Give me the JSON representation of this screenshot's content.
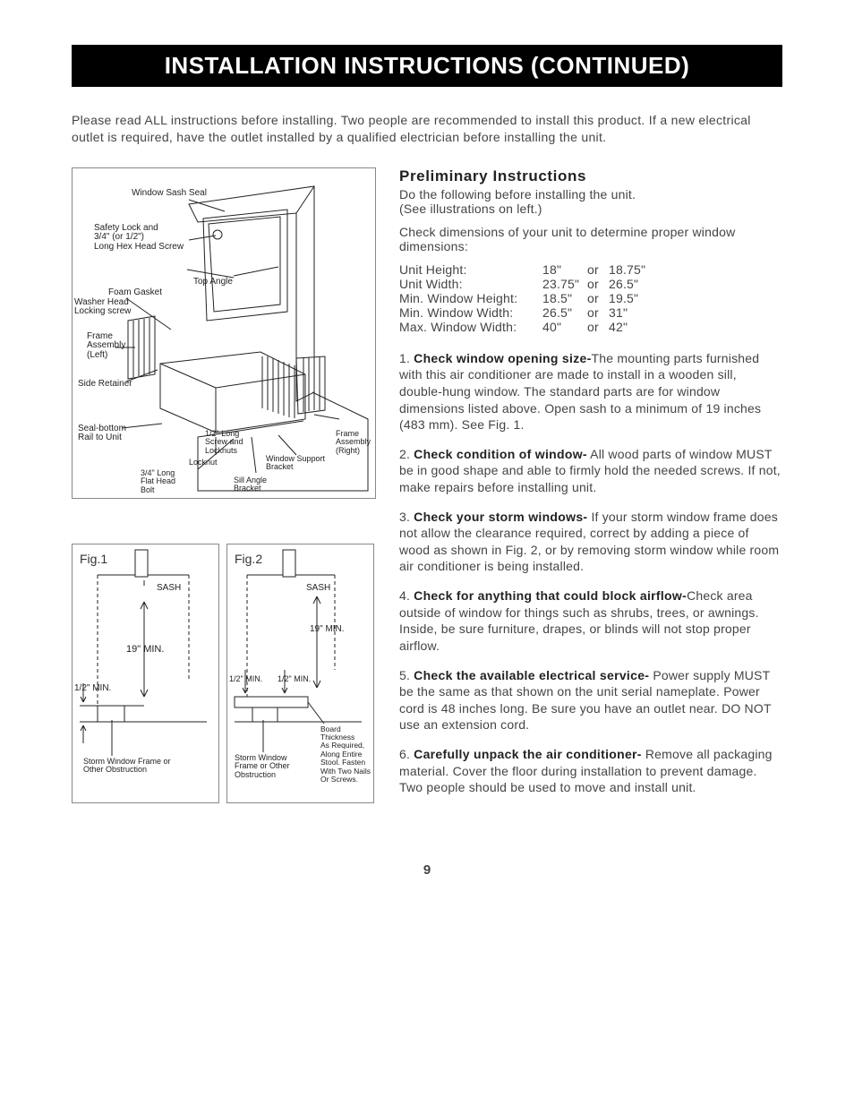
{
  "title": "INSTALLATION INSTRUCTIONS (CONTINUED)",
  "intro": "Please read ALL instructions before installing. Two people are recommended to install this product. If a new electrical outlet is required, have the outlet installed by a qualified electrician before installing the unit.",
  "page_number": "9",
  "diagram_labels": {
    "window_sash_seal": "Window Sash Seal",
    "safety_lock": "Safety Lock and\n3/4\" (or 1/2\")\nLong Hex Head Screw",
    "top_angle": "Top Angle",
    "foam_gasket": "Foam Gasket",
    "washer_head": "Washer Head\nLocking screw",
    "frame_left": "Frame\nAssembly\n(Left)",
    "side_retainer": "Side Retainer",
    "seal_bottom": "Seal-bottom\nRail to Unit",
    "half_screw": "1/2\" Long\nScrew and\nLocknuts",
    "locknut": "Locknut",
    "three_quarter_bolt": "3/4\" Long\nFlat Head\nBolt",
    "sill_angle": "Sill Angle\nBracket",
    "window_support": "Window Support\nBracket",
    "frame_right": "Frame\nAssembly\n(Right)"
  },
  "fig1": {
    "title": "Fig.1",
    "sash": "SASH",
    "nineteen": "19\" MIN.",
    "half": "1/2\" MIN.",
    "storm": "Storm Window Frame or\nOther Obstruction"
  },
  "fig2": {
    "title": "Fig.2",
    "sash": "SASH",
    "nineteen": "19\" MIN.",
    "half": "1/2\" MIN.",
    "storm": "Storm Window\nFrame or Other\nObstruction",
    "board": "Board\nThickness\nAs Required,\nAlong Entire\nStool. Fasten\nWith Two Nails\nOr Screws."
  },
  "prelim": {
    "heading": "Preliminary Instructions",
    "line1": "Do the following before installing the unit.",
    "line2": "(See illustrations on left.)",
    "line3": "Check dimensions of your unit to determine proper window dimensions:"
  },
  "dims": [
    {
      "label": "Unit Height:",
      "v1": "18\"",
      "v2": "18.75\""
    },
    {
      "label": "Unit Width:",
      "v1": "23.75\"",
      "v2": "26.5\""
    },
    {
      "label": "Min. Window Height:",
      "v1": "18.5\"",
      "v2": "19.5\""
    },
    {
      "label": "Min. Window Width:",
      "v1": "26.5\"",
      "v2": "31\""
    },
    {
      "label": "Max. Window Width:",
      "v1": "40\"",
      "v2": "42\""
    }
  ],
  "steps": [
    {
      "n": "1",
      "title": "Check window opening size-",
      "text": "The mounting parts furnished with this air conditioner are made to install in a wooden sill, double-hung window. The standard parts are for window dimensions listed above. Open sash to a minimum of 19 inches (483 mm). See Fig. 1."
    },
    {
      "n": "2",
      "title": "Check condition of window-",
      "text": " All wood parts of window MUST be in good shape and able to firmly hold the needed screws. If not, make repairs before installing unit."
    },
    {
      "n": "3",
      "title": "Check your storm windows-",
      "text": " If your storm window frame does not allow the clearance required, correct by adding a piece of wood as shown in Fig. 2, or by removing storm window while room air conditioner is being installed."
    },
    {
      "n": "4",
      "title": "Check for anything that could block airflow-",
      "text": "Check area outside of window for things such as shrubs, trees, or awnings. Inside, be sure furniture, drapes, or blinds will not stop proper airflow."
    },
    {
      "n": "5",
      "title": "Check the available electrical service-",
      "text": " Power supply MUST be the same as that shown on the unit serial nameplate. Power cord is 48 inches long. Be sure you have an outlet near. DO NOT use an extension cord."
    },
    {
      "n": "6",
      "title": "Carefully unpack the air conditioner-",
      "text": " Remove all packaging material. Cover the floor during installation to prevent damage. Two people should be used to move and install unit."
    }
  ]
}
